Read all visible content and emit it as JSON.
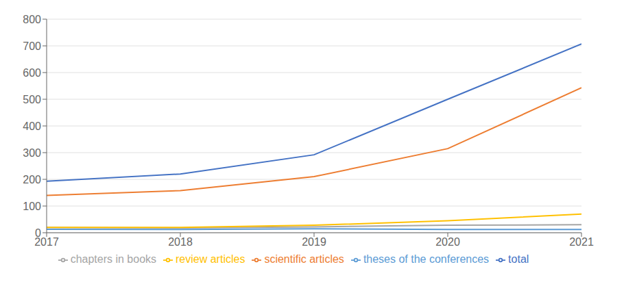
{
  "chart_data": {
    "type": "line",
    "x": [
      2017,
      2018,
      2019,
      2020,
      2021
    ],
    "xlim": [
      2017,
      2021
    ],
    "xticks": [
      2017,
      2018,
      2019,
      2020,
      2021
    ],
    "series": [
      {
        "name": "total",
        "color": "#4472C4",
        "values": [
          193,
          220,
          292,
          500,
          707
        ]
      },
      {
        "name": "scientific articles",
        "color": "#ED7D31",
        "values": [
          140,
          158,
          210,
          315,
          543
        ]
      },
      {
        "name": "chapters in books",
        "color": "#A5A5A5",
        "values": [
          20,
          18,
          22,
          28,
          30
        ]
      },
      {
        "name": "review articles",
        "color": "#FFC000",
        "values": [
          20,
          20,
          28,
          45,
          70
        ]
      },
      {
        "name": "theses of the conferences",
        "color": "#5B9BD5",
        "values": [
          13,
          12,
          15,
          12,
          12
        ]
      }
    ],
    "ylim": [
      0,
      800
    ],
    "yticks": [
      0,
      100,
      200,
      300,
      400,
      500,
      600,
      700,
      800
    ],
    "grid": true,
    "legend": "bottom"
  }
}
